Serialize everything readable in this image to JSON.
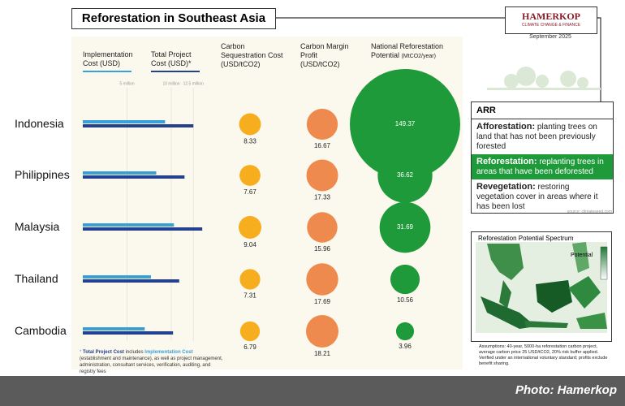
{
  "header": {
    "title": "Reforestation in Southeast Asia",
    "logo": "HAMERKOP",
    "logo_sub": "CLIMATE CHANGE & FINANCE",
    "date": "September 2025"
  },
  "chart_data": [
    {
      "type": "bar",
      "orientation": "horizontal",
      "categories": [
        "Indonesia",
        "Philippines",
        "Malaysia",
        "Thailand",
        "Cambodia"
      ],
      "series": [
        {
          "name": "Implementation Cost (USD)",
          "color": "#3aa0d8",
          "values": [
            9.3,
            8.3,
            10.3,
            7.7,
            7.0
          ]
        },
        {
          "name": "Total Project Cost (USD)*",
          "color": "#23418f",
          "values": [
            12.5,
            11.5,
            13.5,
            10.9,
            10.2
          ]
        }
      ],
      "xlim": [
        0,
        14
      ],
      "xticks": [
        {
          "value": 5,
          "label": "5 million"
        },
        {
          "value": 10,
          "label": "10 million"
        },
        {
          "value": 12.5,
          "label": "12.5 million"
        }
      ],
      "grid": true
    },
    {
      "type": "bubble",
      "title": "Carbon Sequestration Cost (USD/tCO2)",
      "color": "#f6ad1e",
      "values": [
        8.33,
        7.67,
        9.04,
        7.31,
        6.79
      ]
    },
    {
      "type": "bubble",
      "title": "Carbon Margin Profit (USD/tCO2)",
      "color": "#ef8a4e",
      "values": [
        16.67,
        17.33,
        15.96,
        17.69,
        18.21
      ]
    },
    {
      "type": "bubble",
      "title": "National Reforestation Potential",
      "unit": "(MtCO2/year)",
      "color": "#1f9a3a",
      "values": [
        149.37,
        36.62,
        31.69,
        10.56,
        3.96
      ]
    }
  ],
  "footnote": {
    "star": "*",
    "term1": "Total Project Cost",
    "mid": " includes ",
    "term2": "Implementation Cost",
    "rest": " (establishment and maintenance), as well as project management, administration, consultant services, verification, auditing, and registry fees"
  },
  "arr": {
    "title": "ARR",
    "items": [
      {
        "term": "Afforestation:",
        "text": "planting trees on land that has not been previously forested"
      },
      {
        "term": "Reforestation:",
        "text": "replanting trees in areas that have been deforested"
      },
      {
        "term": "Revegetation:",
        "text": "restoring vegetation cover in areas where it has been lost"
      }
    ],
    "source": "source: climateseed.com"
  },
  "map": {
    "title": "Reforestation Potential Spectrum",
    "legend": "Potential"
  },
  "assumptions": "Assumptions: 40-year, 5000-ha reforestation carbon project, average carbon price 25 USD/tCO2, 20% risk buffer applied. Verified under an international voluntary standard; profits exclude benefit sharing.",
  "credit": "Photo: Hamerkop"
}
